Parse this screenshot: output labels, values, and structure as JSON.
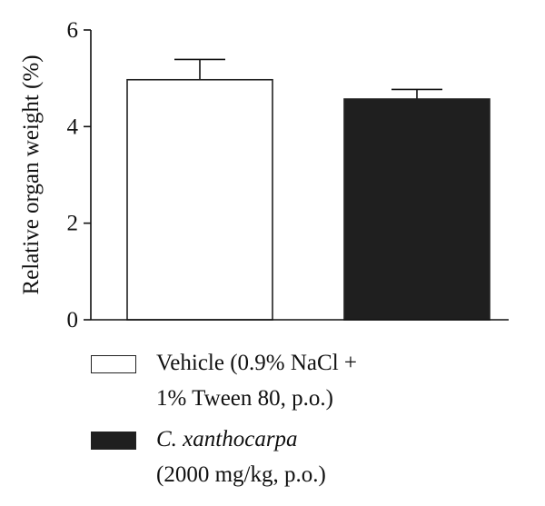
{
  "chart_data": {
    "type": "bar",
    "title": "",
    "xlabel": "",
    "ylabel": "Relative organ weight (%)",
    "ylim": [
      0,
      6
    ],
    "yticks": [
      0,
      2,
      4,
      6
    ],
    "grid": false,
    "legend_placement": "bottom",
    "series": [
      {
        "legend_lines": [
          "Vehicle (0.9% NaCl +",
          "1% Tween 80, p.o.)"
        ],
        "value": 4.97,
        "error": 0.42,
        "color": "#ffffff",
        "edge_color": "#222222"
      },
      {
        "legend_lines": [
          "C. xanthocarpa",
          "(2000 mg/kg, p.o.)"
        ],
        "value": 4.57,
        "error": 0.2,
        "color": "#1f1f1f",
        "edge_color": "#222222"
      }
    ]
  }
}
